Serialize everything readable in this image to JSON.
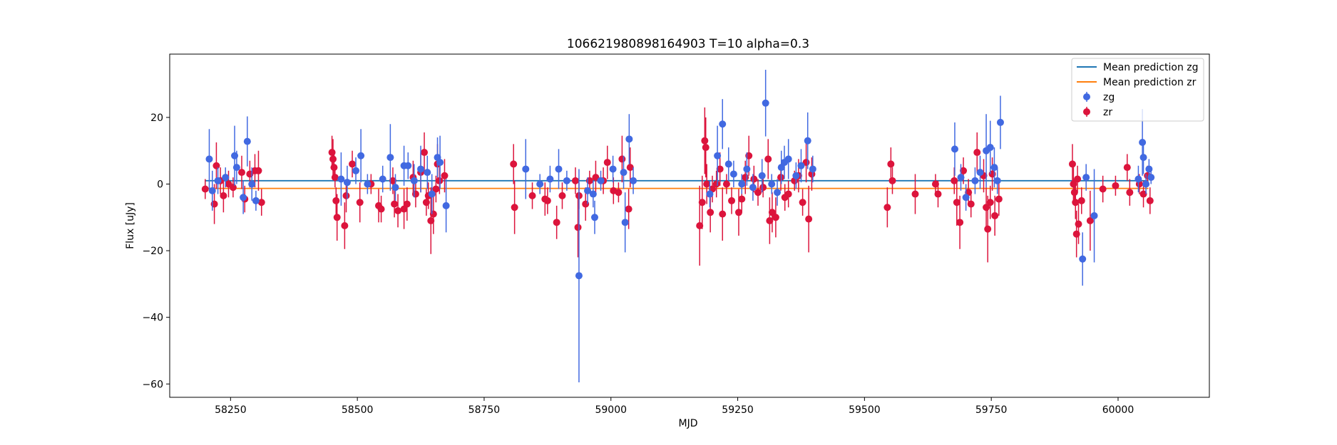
{
  "chart_data": {
    "type": "scatter",
    "title": "106621980898164903 T=10 alpha=0.3",
    "xlabel": "MJD",
    "ylabel": "Flux [uJy]",
    "xlim": [
      58130,
      60180
    ],
    "ylim": [
      -64,
      39
    ],
    "xticks": [
      58250,
      58500,
      58750,
      59000,
      59250,
      59500,
      59750,
      60000
    ],
    "yticks": [
      20,
      0,
      -20,
      -40,
      -60
    ],
    "x_tick_labels": [
      "58250",
      "58500",
      "58750",
      "59000",
      "59250",
      "59500",
      "59750",
      "60000"
    ],
    "y_tick_labels": [
      "20",
      "0",
      "−20",
      "−40",
      "−60"
    ],
    "legend": {
      "position": "top-right",
      "entries": [
        {
          "label": "Mean prediction zg",
          "kind": "line",
          "color": "#1f77b4"
        },
        {
          "label": "Mean prediction zr",
          "kind": "line",
          "color": "#ff7f0e"
        },
        {
          "label": "zg",
          "kind": "errorbar",
          "color": "#4169e1"
        },
        {
          "label": "zr",
          "kind": "errorbar",
          "color": "#dc143c"
        }
      ]
    },
    "mean_lines": [
      {
        "name": "Mean prediction zg",
        "y": 1.0,
        "x_range": [
          58200,
          60060
        ],
        "color": "#1f77b4"
      },
      {
        "name": "Mean prediction zr",
        "y": -1.3,
        "x_range": [
          58200,
          60060
        ],
        "color": "#ff7f0e"
      }
    ],
    "series": [
      {
        "name": "zg",
        "color": "#4169e1",
        "points": [
          [
            58208,
            7.5,
            9
          ],
          [
            58214,
            -2,
            6
          ],
          [
            58225,
            1,
            4
          ],
          [
            58240,
            2,
            3
          ],
          [
            58258,
            8.5,
            9
          ],
          [
            58262,
            5,
            5
          ],
          [
            58275,
            -4,
            5
          ],
          [
            58283,
            12.8,
            7.5
          ],
          [
            58292,
            0,
            5
          ],
          [
            58300,
            -5,
            3
          ],
          [
            58468,
            1.5,
            8
          ],
          [
            58480,
            0.5,
            5
          ],
          [
            58497,
            4,
            4
          ],
          [
            58507,
            8.5,
            8
          ],
          [
            58520,
            0,
            3
          ],
          [
            58550,
            1.5,
            4
          ],
          [
            58565,
            8,
            10
          ],
          [
            58575,
            -1,
            4
          ],
          [
            58592,
            5.5,
            6
          ],
          [
            58600,
            5.5,
            4
          ],
          [
            58612,
            1,
            5
          ],
          [
            58625,
            4.5,
            7
          ],
          [
            58638,
            3.5,
            5
          ],
          [
            58647,
            -3,
            6
          ],
          [
            58658,
            8,
            6
          ],
          [
            58663,
            6.5,
            8
          ],
          [
            58675,
            -6.5,
            8
          ],
          [
            58832,
            4.5,
            9
          ],
          [
            58860,
            0,
            3
          ],
          [
            58880,
            1.5,
            4
          ],
          [
            58897,
            4.5,
            6
          ],
          [
            58913,
            1,
            3
          ],
          [
            58937,
            -27.5,
            32
          ],
          [
            58954,
            -2,
            4
          ],
          [
            58965,
            -3,
            4
          ],
          [
            58968,
            -10,
            5
          ],
          [
            58980,
            1,
            3
          ],
          [
            59004,
            4.5,
            4
          ],
          [
            59025,
            3.5,
            5
          ],
          [
            59028,
            -11.5,
            9
          ],
          [
            59036,
            13.5,
            7.5
          ],
          [
            59044,
            1,
            4
          ],
          [
            59195,
            -3,
            4
          ],
          [
            59210,
            8.5,
            9
          ],
          [
            59220,
            18,
            7.5
          ],
          [
            59232,
            6,
            5
          ],
          [
            59242,
            3,
            4
          ],
          [
            59258,
            0,
            3
          ],
          [
            59268,
            4.5,
            5
          ],
          [
            59280,
            -1,
            4
          ],
          [
            59298,
            2.5,
            5
          ],
          [
            59305,
            24.3,
            10
          ],
          [
            59317,
            0,
            3
          ],
          [
            59328,
            -2.5,
            4
          ],
          [
            59336,
            5,
            5
          ],
          [
            59342,
            6.5,
            5
          ],
          [
            59350,
            7.5,
            6
          ],
          [
            59365,
            2.5,
            4
          ],
          [
            59375,
            5.5,
            5
          ],
          [
            59388,
            13,
            8.5
          ],
          [
            59398,
            4.5,
            4
          ],
          [
            59678,
            10.5,
            8
          ],
          [
            59690,
            2,
            4
          ],
          [
            59700,
            -4,
            4
          ],
          [
            59718,
            1,
            4
          ],
          [
            59728,
            3.5,
            5
          ],
          [
            59740,
            10,
            11
          ],
          [
            59748,
            11,
            8
          ],
          [
            59756,
            5,
            6
          ],
          [
            59762,
            1,
            4
          ],
          [
            59768,
            18.5,
            8
          ],
          [
            59930,
            -22.5,
            8
          ],
          [
            59937,
            2,
            4
          ],
          [
            59953,
            -9.5,
            14
          ],
          [
            60040,
            1.5,
            4
          ],
          [
            60048,
            12.5,
            10
          ],
          [
            60050,
            8,
            5
          ],
          [
            60055,
            0,
            3
          ],
          [
            60061,
            4.5,
            3
          ],
          [
            60065,
            2,
            2
          ]
        ]
      },
      {
        "name": "zr",
        "color": "#dc143c",
        "points": [
          [
            58200,
            -1.5,
            3
          ],
          [
            58218,
            -6,
            6
          ],
          [
            58222,
            5.5,
            7
          ],
          [
            58230,
            1,
            4
          ],
          [
            58236,
            -3.5,
            5
          ],
          [
            58246,
            0,
            4
          ],
          [
            58255,
            -1,
            3
          ],
          [
            58272,
            3.5,
            5
          ],
          [
            58278,
            -4.5,
            4
          ],
          [
            58288,
            3,
            4
          ],
          [
            58298,
            4,
            5
          ],
          [
            58305,
            4,
            6
          ],
          [
            58311,
            -5.5,
            4
          ],
          [
            58450,
            9.5,
            5
          ],
          [
            58452,
            7.5,
            6
          ],
          [
            58454,
            5,
            4
          ],
          [
            58456,
            2,
            3
          ],
          [
            58458,
            -5,
            4
          ],
          [
            58460,
            -10,
            7
          ],
          [
            58475,
            -12.5,
            7
          ],
          [
            58478,
            -3.5,
            5
          ],
          [
            58490,
            6,
            4
          ],
          [
            58505,
            -5.5,
            6
          ],
          [
            58527,
            0,
            3
          ],
          [
            58542,
            -6.5,
            5
          ],
          [
            58547,
            -7.5,
            4
          ],
          [
            58570,
            1,
            4
          ],
          [
            58573,
            -6,
            4
          ],
          [
            58580,
            -8,
            5
          ],
          [
            58592,
            -7.5,
            6
          ],
          [
            58598,
            -6,
            5
          ],
          [
            58610,
            2,
            5
          ],
          [
            58615,
            -3,
            4
          ],
          [
            58625,
            3.5,
            6
          ],
          [
            58632,
            9.5,
            6
          ],
          [
            58636,
            -5.5,
            4
          ],
          [
            58640,
            -3.5,
            4
          ],
          [
            58645,
            -11,
            10
          ],
          [
            58650,
            -9,
            6
          ],
          [
            58655,
            -1.5,
            4
          ],
          [
            58658,
            6,
            6
          ],
          [
            58662,
            1,
            4
          ],
          [
            58672,
            2.5,
            5
          ],
          [
            58808,
            6,
            6
          ],
          [
            58810,
            -7,
            8
          ],
          [
            58845,
            -3.5,
            4
          ],
          [
            58870,
            -4.5,
            5
          ],
          [
            58875,
            -5,
            4
          ],
          [
            58893,
            -11.5,
            5
          ],
          [
            58904,
            -3.5,
            4
          ],
          [
            58930,
            1,
            4
          ],
          [
            58935,
            -13,
            9
          ],
          [
            58937,
            -3.5,
            4
          ],
          [
            58950,
            -6,
            5
          ],
          [
            58958,
            1,
            3
          ],
          [
            58970,
            2,
            5
          ],
          [
            58985,
            1,
            4
          ],
          [
            58993,
            6.5,
            5
          ],
          [
            59005,
            -2,
            4
          ],
          [
            59015,
            -2.5,
            3
          ],
          [
            59022,
            7.5,
            7
          ],
          [
            59035,
            -7.5,
            6
          ],
          [
            59038,
            5,
            6
          ],
          [
            59175,
            -12.5,
            12
          ],
          [
            59180,
            -5.5,
            8
          ],
          [
            59185,
            13,
            10
          ],
          [
            59187,
            11,
            9
          ],
          [
            59189,
            0,
            6
          ],
          [
            59196,
            -8.5,
            6
          ],
          [
            59200,
            -1.5,
            4
          ],
          [
            59208,
            0,
            4
          ],
          [
            59215,
            4.5,
            5
          ],
          [
            59220,
            -9,
            8
          ],
          [
            59228,
            0,
            3
          ],
          [
            59238,
            -5,
            4
          ],
          [
            59252,
            -8.5,
            7
          ],
          [
            59258,
            -4.5,
            4
          ],
          [
            59265,
            2,
            5
          ],
          [
            59272,
            8.5,
            6
          ],
          [
            59282,
            1.5,
            4
          ],
          [
            59290,
            -2.5,
            4
          ],
          [
            59300,
            -1,
            3
          ],
          [
            59310,
            7.5,
            6
          ],
          [
            59313,
            -11,
            7
          ],
          [
            59318,
            -8.5,
            6
          ],
          [
            59325,
            -10,
            6
          ],
          [
            59335,
            2,
            4
          ],
          [
            59343,
            -4,
            4
          ],
          [
            59350,
            -3,
            4
          ],
          [
            59362,
            1,
            3
          ],
          [
            59370,
            2.5,
            5
          ],
          [
            59378,
            -5.5,
            4
          ],
          [
            59385,
            6.5,
            6
          ],
          [
            59390,
            -10.5,
            10
          ],
          [
            59396,
            3,
            5
          ],
          [
            59545,
            -7,
            6
          ],
          [
            59552,
            6,
            5
          ],
          [
            59555,
            1,
            4
          ],
          [
            59600,
            -3,
            6
          ],
          [
            59640,
            0,
            3
          ],
          [
            59645,
            -3,
            4
          ],
          [
            59677,
            1,
            4
          ],
          [
            59682,
            -5.5,
            7
          ],
          [
            59688,
            -11.5,
            8
          ],
          [
            59695,
            4,
            4
          ],
          [
            59705,
            -2.5,
            4
          ],
          [
            59710,
            -6,
            4
          ],
          [
            59722,
            9.5,
            6
          ],
          [
            59735,
            2.5,
            5
          ],
          [
            59740,
            -7,
            6
          ],
          [
            59743,
            -13.5,
            10
          ],
          [
            59748,
            -5.5,
            5
          ],
          [
            59752,
            3,
            5
          ],
          [
            59757,
            -9.5,
            6
          ],
          [
            59765,
            -4.5,
            5
          ],
          [
            59910,
            6,
            6
          ],
          [
            59912,
            0,
            5
          ],
          [
            59914,
            -2.5,
            4
          ],
          [
            59916,
            -5.5,
            5
          ],
          [
            59918,
            -15,
            7
          ],
          [
            59920,
            1.5,
            4
          ],
          [
            59922,
            -12,
            6
          ],
          [
            59928,
            -5,
            4
          ],
          [
            59945,
            -11,
            9
          ],
          [
            59970,
            -1.5,
            4
          ],
          [
            59995,
            -0.5,
            3
          ],
          [
            60018,
            5,
            4
          ],
          [
            60023,
            -2.5,
            4
          ],
          [
            60042,
            0,
            3
          ],
          [
            60050,
            -3,
            4
          ],
          [
            60058,
            2.5,
            3
          ],
          [
            60063,
            -5,
            4
          ]
        ]
      }
    ]
  }
}
